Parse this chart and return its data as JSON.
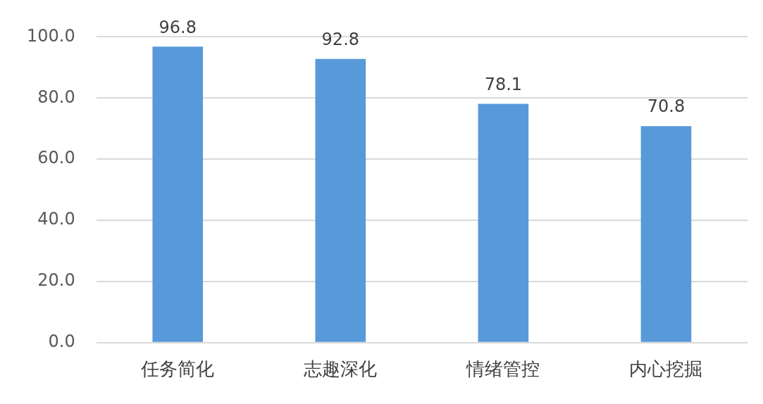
{
  "chart_data": {
    "type": "bar",
    "categories": [
      "任务简化",
      "志趣深化",
      "情绪管控",
      "内心挖掘"
    ],
    "values": [
      96.8,
      92.8,
      78.1,
      70.8
    ],
    "color": "#5899da",
    "ylim": [
      0,
      100
    ],
    "yticks": [
      {
        "value": 0,
        "label": "0.0"
      },
      {
        "value": 20,
        "label": "20.0"
      },
      {
        "value": 40,
        "label": "40.0"
      },
      {
        "value": 60,
        "label": "60.0"
      },
      {
        "value": 80,
        "label": "80.0"
      },
      {
        "value": 100,
        "label": "100.0"
      }
    ],
    "grid": "y",
    "data_labels": true
  }
}
